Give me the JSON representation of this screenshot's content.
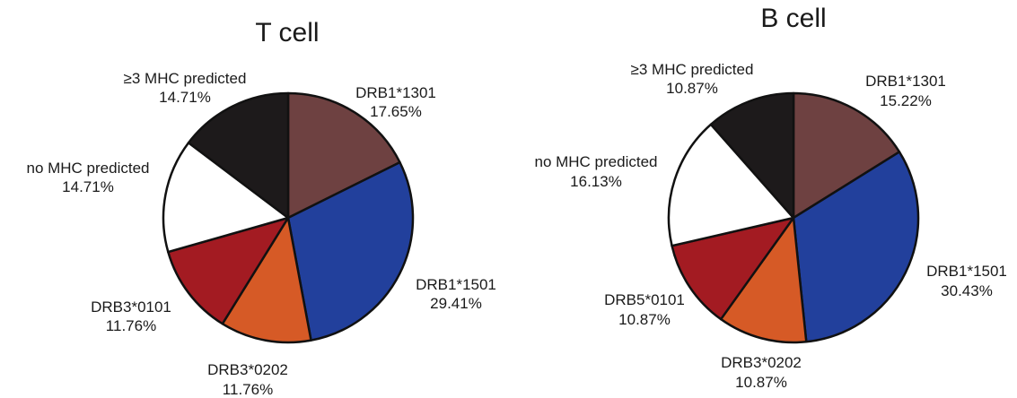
{
  "chart_data": [
    {
      "type": "pie",
      "title": "T cell",
      "slices": [
        {
          "label": "DRB1*1301",
          "value": 17.65,
          "display": "17.65%",
          "color": "#6e4141"
        },
        {
          "label": "DRB1*1501",
          "value": 29.41,
          "display": "29.41%",
          "color": "#22409c"
        },
        {
          "label": "DRB3*0202",
          "value": 11.76,
          "display": "11.76%",
          "color": "#d65a26"
        },
        {
          "label": "DRB3*0101",
          "value": 11.76,
          "display": "11.76%",
          "color": "#a31b22"
        },
        {
          "label": "no MHC predicted",
          "value": 14.71,
          "display": "14.71%",
          "color": "#ffffff"
        },
        {
          "label": "≥3 MHC predicted",
          "value": 14.71,
          "display": "14.71%",
          "color": "#1d1a1b"
        }
      ]
    },
    {
      "type": "pie",
      "title": "B cell",
      "slices": [
        {
          "label": "DRB1*1301",
          "value": 15.22,
          "display": "15.22%",
          "color": "#6e4141"
        },
        {
          "label": "DRB1*1501",
          "value": 30.43,
          "display": "30.43%",
          "color": "#22409c"
        },
        {
          "label": "DRB3*0202",
          "value": 10.87,
          "display": "10.87%",
          "color": "#d65a26"
        },
        {
          "label": "DRB5*0101",
          "value": 10.87,
          "display": "10.87%",
          "color": "#a31b22"
        },
        {
          "label": "no MHC predicted",
          "value": 16.13,
          "display": "16.13%",
          "color": "#ffffff"
        },
        {
          "label": "≥3 MHC predicted",
          "value": 10.87,
          "display": "10.87%",
          "color": "#1d1a1b"
        }
      ]
    }
  ]
}
